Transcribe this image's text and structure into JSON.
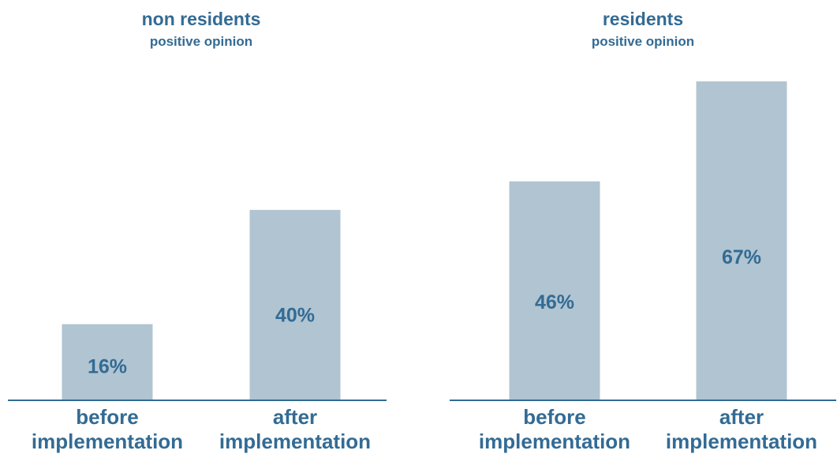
{
  "colors": {
    "text": "#336b94",
    "bar": "#b0c4d1",
    "axis": "#336b94"
  },
  "chart_data": [
    {
      "type": "bar",
      "title": "non residents",
      "subtitle": "positive opinion",
      "categories": [
        [
          "before",
          "implementation"
        ],
        [
          "after",
          "implementation"
        ]
      ],
      "values": [
        16,
        40
      ],
      "data_labels": [
        "16%",
        "40%"
      ],
      "ylim": [
        0,
        70
      ],
      "grid": false,
      "legend": "none"
    },
    {
      "type": "bar",
      "title": "residents",
      "subtitle": "positive opinion",
      "categories": [
        [
          "before",
          "implementation"
        ],
        [
          "after",
          "implementation"
        ]
      ],
      "values": [
        46,
        67
      ],
      "data_labels": [
        "46%",
        "67%"
      ],
      "ylim": [
        0,
        70
      ],
      "grid": false,
      "legend": "none"
    }
  ]
}
